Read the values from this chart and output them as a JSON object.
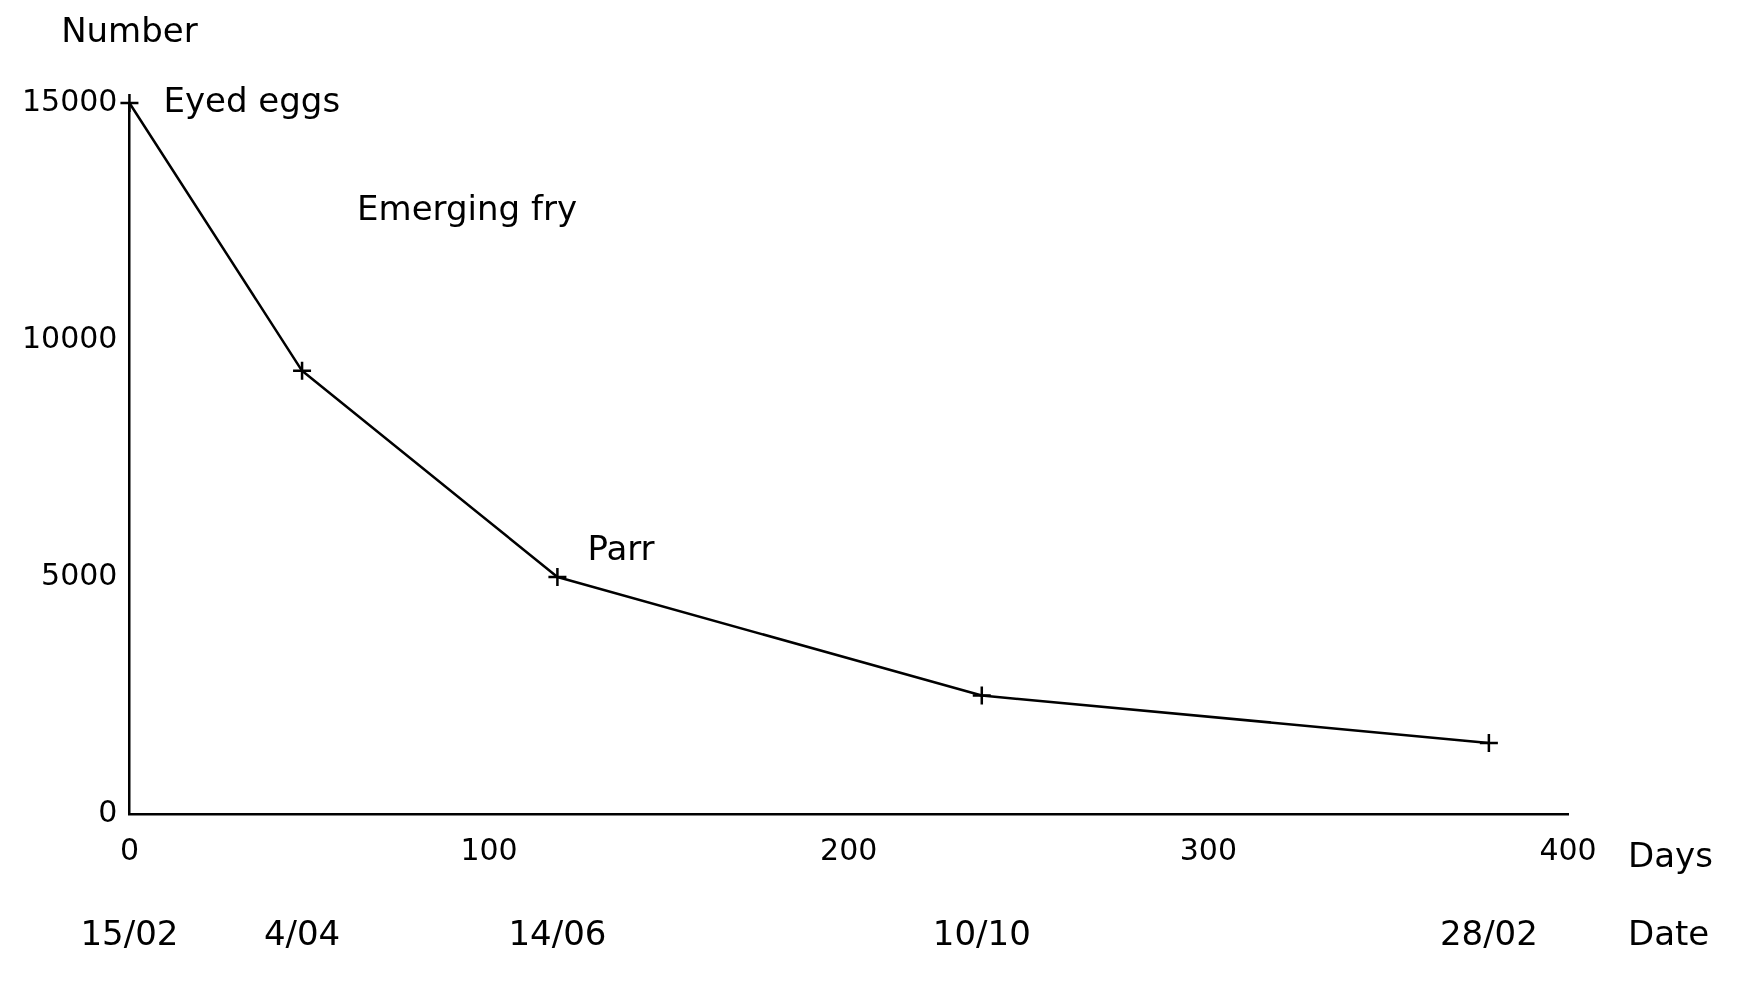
{
  "chart_data": {
    "type": "line",
    "xlabel": "Days",
    "ylabel": "Number",
    "x2label": "Date",
    "x": [
      0,
      48,
      119,
      237,
      378
    ],
    "values": [
      15000,
      9350,
      5000,
      2500,
      1500
    ],
    "color": "#000000",
    "marker": "cross",
    "line_style": "solid",
    "grid": false,
    "legend": false,
    "xlim": [
      0,
      400
    ],
    "xticks": [
      0,
      100,
      200,
      300,
      400
    ],
    "ylim": [
      0,
      15000
    ],
    "yticks": [
      0,
      5000,
      10000,
      15000
    ],
    "annotations": [
      {
        "text": "Eyed eggs",
        "x": 0,
        "y": 15000
      },
      "Emerging fry",
      "Parr",
      "15/02",
      "4/04",
      "14/06",
      "10/10",
      "28/02"
    ]
  }
}
